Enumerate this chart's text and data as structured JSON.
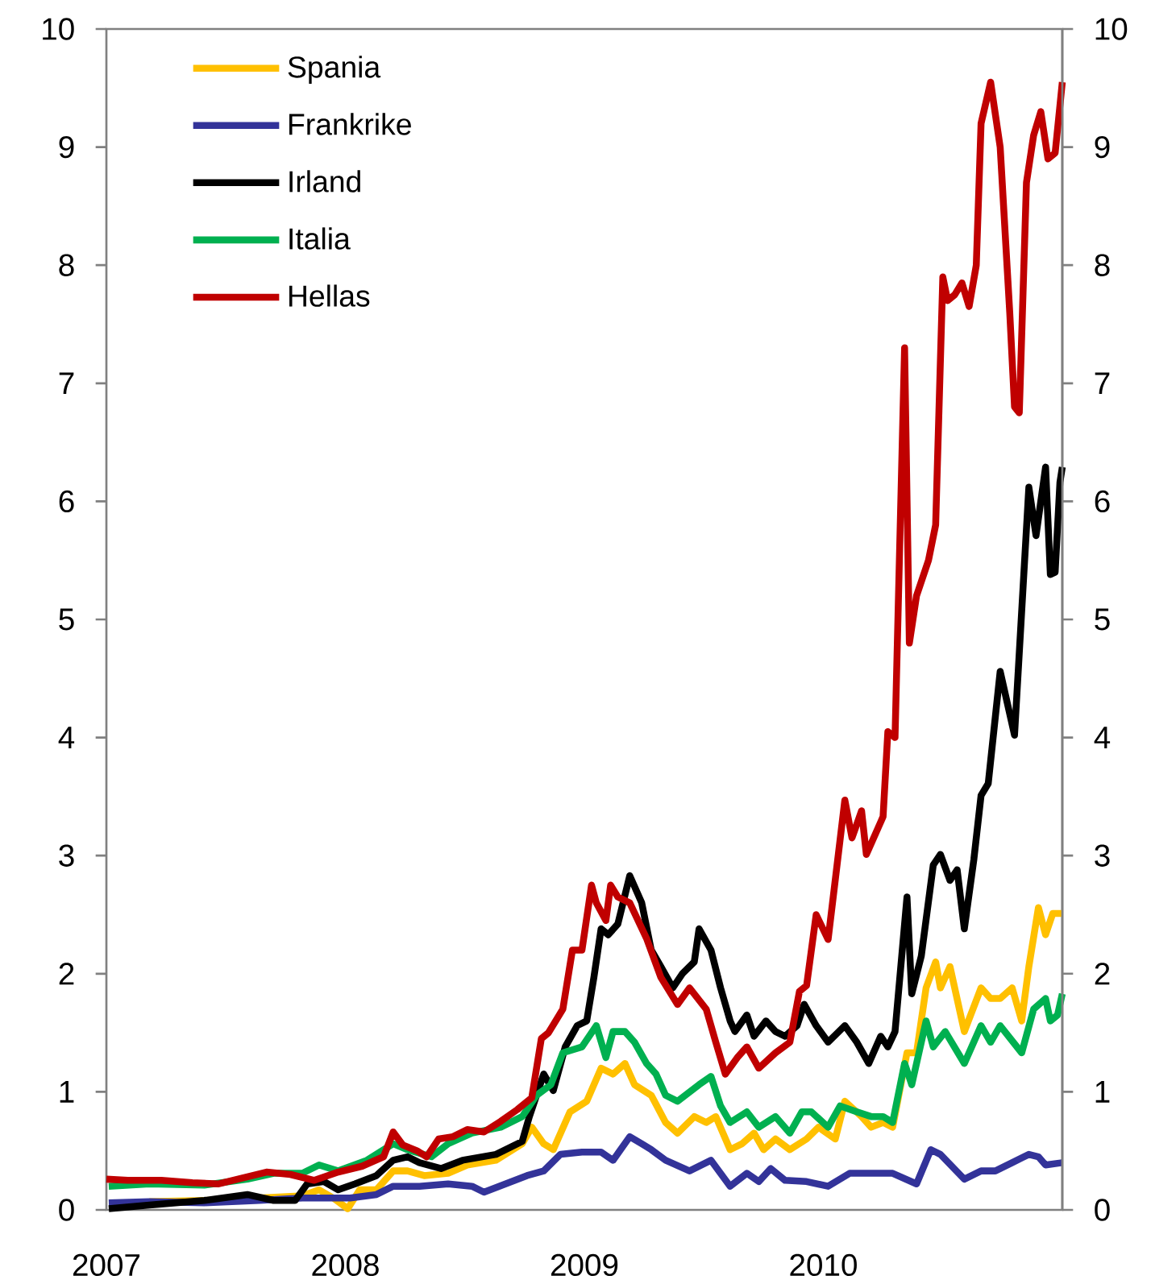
{
  "chart_data": {
    "type": "line",
    "xlim": [
      2007,
      2011
    ],
    "xticks": [
      2007,
      2008,
      2009,
      2010
    ],
    "ylim": [
      0,
      10
    ],
    "yticks": [
      0,
      1,
      2,
      3,
      4,
      5,
      6,
      7,
      8,
      9,
      10
    ],
    "y2lim": [
      0,
      10
    ],
    "y2ticks": [
      0,
      1,
      2,
      3,
      4,
      5,
      6,
      7,
      8,
      9,
      10
    ],
    "legend": "top left",
    "series": [
      {
        "name": "Spania",
        "color": "#ffc000",
        "x": [
          2007.18,
          2007.41,
          2007.64,
          2007.82,
          2007.89,
          2007.95,
          2008.01,
          2008.06,
          2008.13,
          2008.2,
          2008.26,
          2008.33,
          2008.43,
          2008.51,
          2008.63,
          2008.74,
          2008.78,
          2008.83,
          2008.87,
          2008.94,
          2009.01,
          2009.07,
          2009.12,
          2009.17,
          2009.21,
          2009.28,
          2009.34,
          2009.39,
          2009.46,
          2009.51,
          2009.55,
          2009.61,
          2009.66,
          2009.71,
          2009.75,
          2009.8,
          2009.86,
          2009.93,
          2009.98,
          2010.05,
          2010.09,
          2010.16,
          2010.2,
          2010.25,
          2010.29,
          2010.35,
          2010.39,
          2010.43,
          2010.47,
          2010.49,
          2010.53,
          2010.59,
          2010.66,
          2010.7,
          2010.74,
          2010.79,
          2010.83,
          2010.86,
          2010.9,
          2010.93,
          2010.96,
          2011.0
        ],
        "values": [
          0.07,
          0.08,
          0.1,
          0.12,
          0.17,
          0.1,
          0.01,
          0.17,
          0.17,
          0.33,
          0.33,
          0.29,
          0.31,
          0.38,
          0.42,
          0.56,
          0.7,
          0.56,
          0.51,
          0.83,
          0.92,
          1.2,
          1.15,
          1.24,
          1.06,
          0.97,
          0.74,
          0.65,
          0.79,
          0.74,
          0.79,
          0.51,
          0.56,
          0.65,
          0.51,
          0.6,
          0.51,
          0.6,
          0.7,
          0.6,
          0.92,
          0.79,
          0.7,
          0.74,
          0.7,
          1.33,
          1.33,
          1.88,
          2.1,
          1.88,
          2.06,
          1.51,
          1.88,
          1.79,
          1.79,
          1.88,
          1.6,
          2.06,
          2.56,
          2.33,
          2.51,
          2.51
        ]
      },
      {
        "name": "Frankrike",
        "color": "#333399",
        "x": [
          2007.01,
          2007.18,
          2007.41,
          2007.64,
          2007.82,
          2007.91,
          2008.02,
          2008.13,
          2008.2,
          2008.31,
          2008.43,
          2008.53,
          2008.58,
          2008.67,
          2008.76,
          2008.83,
          2008.9,
          2008.99,
          2009.07,
          2009.12,
          2009.19,
          2009.24,
          2009.28,
          2009.34,
          2009.44,
          2009.53,
          2009.61,
          2009.68,
          2009.73,
          2009.78,
          2009.84,
          2009.93,
          2010.02,
          2010.11,
          2010.2,
          2010.29,
          2010.39,
          2010.45,
          2010.49,
          2010.59,
          2010.66,
          2010.72,
          2010.79,
          2010.86,
          2010.9,
          2010.93,
          2011.0
        ],
        "values": [
          0.06,
          0.07,
          0.06,
          0.08,
          0.1,
          0.1,
          0.1,
          0.13,
          0.2,
          0.2,
          0.22,
          0.2,
          0.15,
          0.22,
          0.29,
          0.33,
          0.47,
          0.49,
          0.49,
          0.42,
          0.62,
          0.56,
          0.51,
          0.42,
          0.33,
          0.42,
          0.2,
          0.31,
          0.24,
          0.35,
          0.25,
          0.24,
          0.2,
          0.31,
          0.31,
          0.31,
          0.22,
          0.51,
          0.47,
          0.26,
          0.33,
          0.33,
          0.4,
          0.47,
          0.45,
          0.38,
          0.4
        ]
      },
      {
        "name": "Irland",
        "color": "#000000",
        "x": [
          2007.01,
          2007.18,
          2007.41,
          2007.59,
          2007.7,
          2007.79,
          2007.84,
          2007.91,
          2007.97,
          2008.04,
          2008.13,
          2008.2,
          2008.26,
          2008.31,
          2008.4,
          2008.49,
          2008.63,
          2008.74,
          2008.77,
          2008.83,
          2008.87,
          2008.92,
          2008.97,
          2009.01,
          2009.04,
          2009.07,
          2009.1,
          2009.14,
          2009.19,
          2009.24,
          2009.28,
          2009.32,
          2009.37,
          2009.41,
          2009.46,
          2009.48,
          2009.53,
          2009.57,
          2009.61,
          2009.63,
          2009.68,
          2009.71,
          2009.76,
          2009.8,
          2009.84,
          2009.89,
          2009.92,
          2009.97,
          2010.02,
          2010.09,
          2010.14,
          2010.19,
          2010.24,
          2010.27,
          2010.3,
          2010.35,
          2010.37,
          2010.41,
          2010.46,
          2010.49,
          2010.53,
          2010.56,
          2010.59,
          2010.63,
          2010.66,
          2010.69,
          2010.74,
          2010.8,
          2010.86,
          2010.89,
          2010.93,
          2010.95,
          2010.97,
          2010.99,
          2011.0
        ],
        "values": [
          0.01,
          0.04,
          0.08,
          0.13,
          0.08,
          0.08,
          0.22,
          0.24,
          0.17,
          0.22,
          0.29,
          0.42,
          0.45,
          0.4,
          0.35,
          0.42,
          0.47,
          0.58,
          0.79,
          1.15,
          1.01,
          1.38,
          1.56,
          1.6,
          1.97,
          2.38,
          2.33,
          2.42,
          2.83,
          2.6,
          2.2,
          2.06,
          1.88,
          2.0,
          2.1,
          2.38,
          2.2,
          1.88,
          1.6,
          1.51,
          1.65,
          1.47,
          1.6,
          1.51,
          1.47,
          1.56,
          1.74,
          1.56,
          1.42,
          1.56,
          1.42,
          1.24,
          1.47,
          1.38,
          1.51,
          2.65,
          1.83,
          2.15,
          2.92,
          3.01,
          2.79,
          2.88,
          2.38,
          2.97,
          3.51,
          3.61,
          4.56,
          4.02,
          6.12,
          5.71,
          6.29,
          5.38,
          5.4,
          6.16,
          6.29
        ]
      },
      {
        "name": "Italia",
        "color": "#00b050",
        "x": [
          2007.01,
          2007.18,
          2007.41,
          2007.59,
          2007.7,
          2007.82,
          2007.89,
          2007.97,
          2008.09,
          2008.2,
          2008.26,
          2008.36,
          2008.43,
          2008.53,
          2008.65,
          2008.74,
          2008.8,
          2008.86,
          2008.91,
          2008.99,
          2009.05,
          2009.09,
          2009.12,
          2009.17,
          2009.21,
          2009.26,
          2009.3,
          2009.34,
          2009.39,
          2009.48,
          2009.53,
          2009.57,
          2009.61,
          2009.68,
          2009.73,
          2009.8,
          2009.86,
          2009.91,
          2009.95,
          2010.02,
          2010.07,
          2010.14,
          2010.2,
          2010.25,
          2010.29,
          2010.34,
          2010.37,
          2010.43,
          2010.46,
          2010.51,
          2010.59,
          2010.66,
          2010.7,
          2010.74,
          2010.83,
          2010.88,
          2010.93,
          2010.95,
          2010.98,
          2011.0
        ],
        "values": [
          0.2,
          0.22,
          0.21,
          0.26,
          0.31,
          0.31,
          0.38,
          0.33,
          0.42,
          0.56,
          0.51,
          0.45,
          0.56,
          0.65,
          0.7,
          0.79,
          0.97,
          1.06,
          1.33,
          1.38,
          1.56,
          1.29,
          1.51,
          1.51,
          1.42,
          1.24,
          1.15,
          0.97,
          0.92,
          1.06,
          1.13,
          0.88,
          0.74,
          0.83,
          0.7,
          0.79,
          0.65,
          0.83,
          0.83,
          0.7,
          0.88,
          0.83,
          0.79,
          0.79,
          0.74,
          1.24,
          1.06,
          1.6,
          1.38,
          1.51,
          1.24,
          1.56,
          1.42,
          1.56,
          1.33,
          1.7,
          1.79,
          1.6,
          1.65,
          1.83
        ]
      },
      {
        "name": "Hellas",
        "color": "#c00000",
        "x": [
          2007.0,
          2007.09,
          2007.23,
          2007.36,
          2007.47,
          2007.57,
          2007.67,
          2007.77,
          2007.87,
          2007.97,
          2008.07,
          2008.16,
          2008.2,
          2008.24,
          2008.3,
          2008.34,
          2008.39,
          2008.45,
          2008.51,
          2008.58,
          2008.65,
          2008.72,
          2008.78,
          2008.82,
          2008.85,
          2008.91,
          2008.95,
          2008.99,
          2009.03,
          2009.05,
          2009.09,
          2009.11,
          2009.14,
          2009.19,
          2009.26,
          2009.32,
          2009.39,
          2009.44,
          2009.51,
          2009.55,
          2009.59,
          2009.64,
          2009.68,
          2009.73,
          2009.8,
          2009.86,
          2009.9,
          2009.93,
          2009.97,
          2010.02,
          2010.09,
          2010.12,
          2010.16,
          2010.18,
          2010.25,
          2010.27,
          2010.3,
          2010.34,
          2010.36,
          2010.39,
          2010.44,
          2010.47,
          2010.5,
          2010.52,
          2010.55,
          2010.58,
          2010.61,
          2010.64,
          2010.66,
          2010.7,
          2010.74,
          2010.78,
          2010.8,
          2010.82,
          2010.85,
          2010.88,
          2010.91,
          2010.94,
          2010.97,
          2011.0
        ],
        "values": [
          0.26,
          0.25,
          0.25,
          0.23,
          0.22,
          0.27,
          0.32,
          0.3,
          0.25,
          0.32,
          0.37,
          0.45,
          0.66,
          0.55,
          0.5,
          0.45,
          0.6,
          0.62,
          0.68,
          0.66,
          0.75,
          0.85,
          0.95,
          1.45,
          1.5,
          1.7,
          2.2,
          2.2,
          2.75,
          2.6,
          2.45,
          2.75,
          2.65,
          2.6,
          2.3,
          1.97,
          1.74,
          1.88,
          1.7,
          1.42,
          1.15,
          1.29,
          1.38,
          1.2,
          1.33,
          1.42,
          1.85,
          1.9,
          2.5,
          2.29,
          3.47,
          3.15,
          3.38,
          3.01,
          3.33,
          4.05,
          4.0,
          7.3,
          4.8,
          5.2,
          5.5,
          5.8,
          7.9,
          7.7,
          7.75,
          7.85,
          7.65,
          8.0,
          9.2,
          9.55,
          9.0,
          7.6,
          6.8,
          6.75,
          8.7,
          9.1,
          9.3,
          8.9,
          8.95,
          9.55
        ]
      }
    ]
  }
}
